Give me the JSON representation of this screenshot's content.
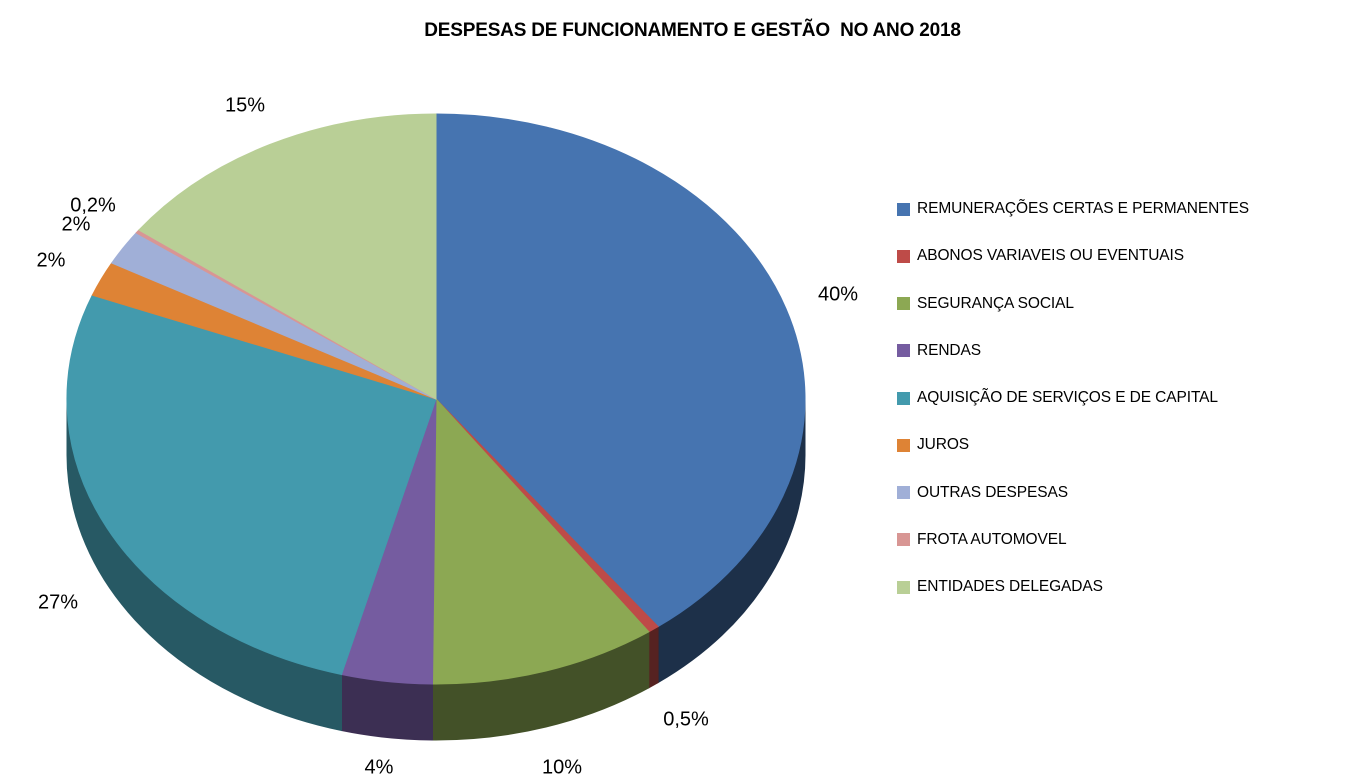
{
  "chart_data": {
    "type": "pie",
    "title": "DESPESAS DE FUNCIONAMENTO E GESTÃO  NO ANO 2018",
    "is_3d": true,
    "start_angle_deg": 0,
    "direction": "clockwise",
    "legend_position": "right",
    "background": "#FFFFFF",
    "text_color": "#000000",
    "slices": [
      {
        "label": "REMUNERAÇÕES CERTAS E PERMANENTES",
        "value": 40,
        "display": "40%",
        "color": "#4674B0"
      },
      {
        "label": "ABONOS VARIAVEIS OU EVENTUAIS",
        "value": 0.5,
        "display": "0,5%",
        "color": "#BE4B48"
      },
      {
        "label": "SEGURANÇA SOCIAL",
        "value": 10,
        "display": "10%",
        "color": "#8CA853"
      },
      {
        "label": "RENDAS",
        "value": 4,
        "display": "4%",
        "color": "#755CA0"
      },
      {
        "label": "AQUISIÇÃO DE SERVIÇOS E DE CAPITAL",
        "value": 27,
        "display": "27%",
        "color": "#439AAD"
      },
      {
        "label": "JUROS",
        "value": 2,
        "display": "2%",
        "color": "#DE8335"
      },
      {
        "label": "OUTRAS DESPESAS",
        "value": 2,
        "display": "2%",
        "color": "#A0AFD7"
      },
      {
        "label": "FROTA AUTOMOVEL",
        "value": 0.2,
        "display": "0,2%",
        "color": "#D89694"
      },
      {
        "label": "ENTIDADES DELEGADAS",
        "value": 15,
        "display": "15%",
        "color": "#B9CF96"
      }
    ]
  }
}
